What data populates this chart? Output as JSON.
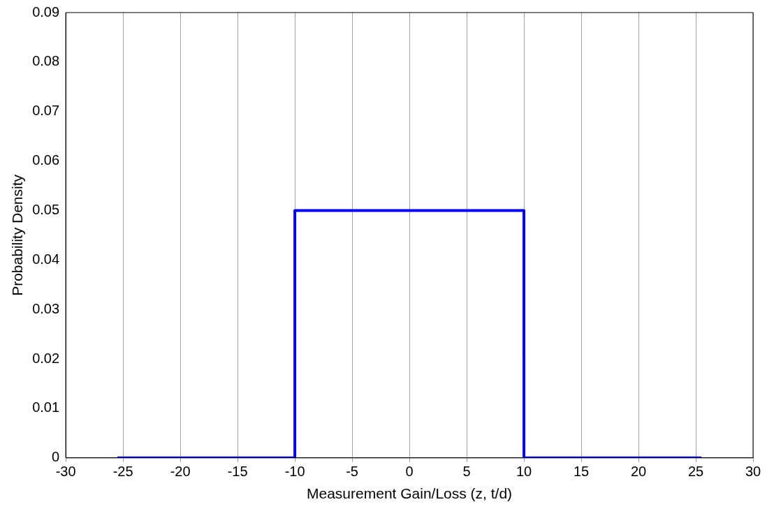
{
  "chart_data": {
    "type": "line",
    "xlabel": "Measurement Gain/Loss (z, t/d)",
    "ylabel": "Probability Density",
    "x": [
      -25.5,
      -10,
      -10,
      10,
      10,
      25.5
    ],
    "series": [
      {
        "color": "#0000ff",
        "values": [
          0,
          0,
          0.05,
          0.05,
          0,
          0
        ]
      }
    ],
    "xlim": [
      -30,
      30
    ],
    "xticks": [
      -30,
      -25,
      -20,
      -15,
      -10,
      -5,
      0,
      5,
      10,
      15,
      20,
      25,
      30
    ],
    "ylim": [
      0,
      0.09
    ],
    "yticks": [
      0,
      0.01,
      0.02,
      0.03,
      0.04,
      0.05,
      0.06,
      0.07,
      0.08,
      0.09
    ],
    "grid": "x",
    "legend": false,
    "marker": "none",
    "line_style": "solid"
  }
}
